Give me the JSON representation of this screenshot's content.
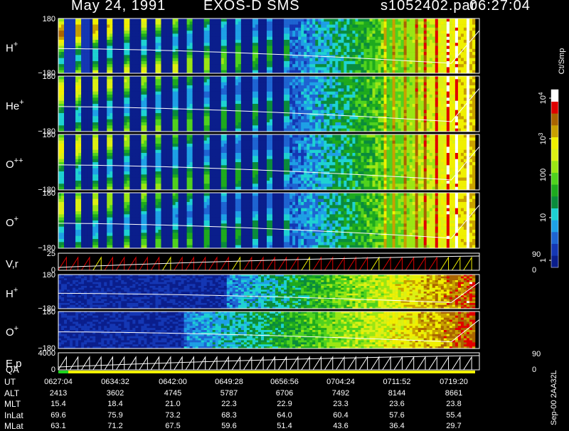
{
  "header": {
    "date": "May 24, 1991",
    "instrument": "EXOS-D SMS",
    "file": "s1052402.par",
    "time": "06:27:04"
  },
  "colors": {
    "background": "#000000",
    "trace": "#ffffff",
    "red": "#e00000",
    "yellow": "#f0f000",
    "green": "#1ed21e",
    "darkblue": "#0a1e8c"
  },
  "chart_data": {
    "type": "heatmap",
    "panels": [
      {
        "label": "H",
        "sup": "+",
        "ymax": "180",
        "ymin": "−180"
      },
      {
        "label": "He",
        "sup": "+",
        "ymax": "180",
        "ymin": "−180"
      },
      {
        "label": "O",
        "sup": "++",
        "ymax": "180",
        "ymin": "−180"
      },
      {
        "label": "O",
        "sup": "+",
        "ymax": "180",
        "ymin": "−180"
      },
      {
        "label": "V,r",
        "sup": "",
        "ymax": "25",
        "ymin": "0",
        "right_top": "90",
        "right_bottom": "0"
      },
      {
        "label": "H",
        "sup": "+",
        "ymax": "180",
        "ymin": "−180"
      },
      {
        "label": "O",
        "sup": "+",
        "ymax": "180",
        "ymin": "−180"
      },
      {
        "label": "E,p",
        "sup": "",
        "ymax": "4000",
        "ymin": "0",
        "right_top": "90",
        "right_bottom": "0"
      }
    ],
    "qa_label": "QA",
    "colorbar": {
      "unit": "Ct/Smp",
      "ticks": [
        {
          "base": "10",
          "exp": "4"
        },
        {
          "base": "10",
          "exp": "3"
        },
        {
          "base": "100",
          "exp": ""
        },
        {
          "base": "10",
          "exp": ""
        },
        {
          "base": "1",
          "exp": ""
        }
      ]
    },
    "footer": {
      "labels": [
        "UT",
        "ALT",
        "MLT",
        "InLat",
        "MLat"
      ],
      "rows": [
        [
          "0627:04",
          "0634:32",
          "0642:00",
          "0649:28",
          "0656:56",
          "0704:24",
          "0711:52",
          "0719:20"
        ],
        [
          "2413",
          "3602",
          "4745",
          "5787",
          "6706",
          "7492",
          "8144",
          "8661"
        ],
        [
          "15.4",
          "18.4",
          "21.0",
          "22.3",
          "22.9",
          "23.3",
          "23.6",
          "23.8"
        ],
        [
          "69.6",
          "75.9",
          "73.2",
          "68.3",
          "64.0",
          "60.4",
          "57.6",
          "55.4"
        ],
        [
          "63.1",
          "71.2",
          "67.5",
          "59.6",
          "51.4",
          "43.6",
          "36.4",
          "29.7"
        ]
      ]
    },
    "credit": "Sep-00 2AA32L"
  }
}
